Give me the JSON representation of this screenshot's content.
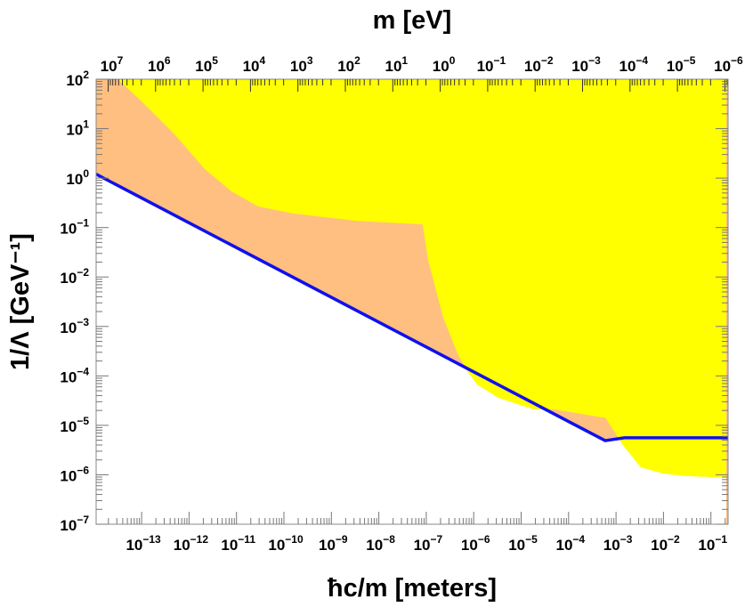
{
  "chart_data": {
    "type": "area",
    "title": "",
    "xlabel": "ħc/m [meters]",
    "ylabel": "1/Λ [GeV⁻¹]",
    "top_xlabel": "m [eV]",
    "xscale": "log",
    "yscale": "log",
    "xlim": [
      1.1e-14,
      0.23
    ],
    "ylim": [
      1e-07,
      100
    ],
    "grid": false,
    "legend": "none",
    "x_ticks": [
      {
        "base": "10",
        "exp": "−13",
        "value": 1e-13
      },
      {
        "base": "10",
        "exp": "−12",
        "value": 1e-12
      },
      {
        "base": "10",
        "exp": "−11",
        "value": 1e-11
      },
      {
        "base": "10",
        "exp": "−10",
        "value": 1e-10
      },
      {
        "base": "10",
        "exp": "−9",
        "value": 1e-09
      },
      {
        "base": "10",
        "exp": "−8",
        "value": 1e-08
      },
      {
        "base": "10",
        "exp": "−7",
        "value": 1e-07
      },
      {
        "base": "10",
        "exp": "−6",
        "value": 1e-06
      },
      {
        "base": "10",
        "exp": "−5",
        "value": 1e-05
      },
      {
        "base": "10",
        "exp": "−4",
        "value": 0.0001
      },
      {
        "base": "10",
        "exp": "−3",
        "value": 0.001
      },
      {
        "base": "10",
        "exp": "−2",
        "value": 0.01
      },
      {
        "base": "10",
        "exp": "−1",
        "value": 0.1
      }
    ],
    "top_ticks_ev": [
      {
        "base": "10",
        "exp": "7",
        "value": 10000000.0
      },
      {
        "base": "10",
        "exp": "6",
        "value": 1000000.0
      },
      {
        "base": "10",
        "exp": "5",
        "value": 100000.0
      },
      {
        "base": "10",
        "exp": "4",
        "value": 10000.0
      },
      {
        "base": "10",
        "exp": "3",
        "value": 1000.0
      },
      {
        "base": "10",
        "exp": "2",
        "value": 100.0
      },
      {
        "base": "10",
        "exp": "1",
        "value": 10.0
      },
      {
        "base": "10",
        "exp": "0",
        "value": 1
      },
      {
        "base": "10",
        "exp": "−1",
        "value": 0.1
      },
      {
        "base": "10",
        "exp": "−2",
        "value": 0.01
      },
      {
        "base": "10",
        "exp": "−3",
        "value": 0.001
      },
      {
        "base": "10",
        "exp": "−4",
        "value": 0.0001
      },
      {
        "base": "10",
        "exp": "−5",
        "value": 1e-05
      },
      {
        "base": "10",
        "exp": "−6",
        "value": 1e-06
      }
    ],
    "hbar_c_eV_m": 1.97e-07,
    "y_ticks": [
      {
        "base": "10",
        "exp": "2",
        "value": 100
      },
      {
        "base": "10",
        "exp": "1",
        "value": 10
      },
      {
        "base": "10",
        "exp": "0",
        "value": 1
      },
      {
        "base": "10",
        "exp": "−1",
        "value": 0.1
      },
      {
        "base": "10",
        "exp": "−2",
        "value": 0.01
      },
      {
        "base": "10",
        "exp": "−3",
        "value": 0.001
      },
      {
        "base": "10",
        "exp": "−4",
        "value": 0.0001
      },
      {
        "base": "10",
        "exp": "−5",
        "value": 1e-05
      },
      {
        "base": "10",
        "exp": "−6",
        "value": 1e-06
      },
      {
        "base": "10",
        "exp": "−7",
        "value": 1e-07
      }
    ],
    "series": [
      {
        "kind": "line",
        "color": "#1010ee",
        "points": [
          [
            1.1e-14,
            1.2
          ],
          [
            0.00059,
            4.9e-06
          ],
          [
            0.0015,
            5.6e-06
          ],
          [
            0.23,
            5.6e-06
          ]
        ]
      },
      {
        "kind": "filled-region-above-line",
        "color": "#ffbf80",
        "boundary": [
          [
            1.1e-14,
            1.2
          ],
          [
            0.00059,
            4.9e-06
          ],
          [
            0.0015,
            5.6e-06
          ]
        ]
      },
      {
        "kind": "filled-region-above-curve",
        "color": "#ffff00",
        "boundary": [
          [
            3.1e-14,
            100
          ],
          [
            8.4e-14,
            41.9
          ],
          [
            2.48e-13,
            14.9
          ],
          [
            5.16e-13,
            7.35
          ],
          [
            2.14e-12,
            1.52
          ],
          [
            7.83e-12,
            0.54
          ],
          [
            2.86e-11,
            0.267
          ],
          [
            1.61e-10,
            0.191
          ],
          [
            3.3e-09,
            0.137
          ],
          [
            8.4e-08,
            0.116
          ],
          [
            1.09e-07,
            0.0222
          ],
          [
            2.28e-07,
            0.0015
          ],
          [
            4.54e-07,
            0.000286
          ],
          [
            7.3e-07,
            0.000125
          ],
          [
            1.17e-06,
            6.7e-05
          ],
          [
            3.3e-06,
            3.6e-05
          ],
          [
            1.86e-05,
            2.1e-05
          ],
          [
            5e-05,
            2.1e-05
          ],
          [
            0.000494,
            1.45e-05
          ],
          [
            0.00059,
            1.45e-05
          ],
          [
            0.00139,
            4e-06
          ],
          [
            0.0033,
            1.42e-06
          ],
          [
            0.0097,
            1.06e-06
          ],
          [
            0.0286,
            9.4e-07
          ],
          [
            0.104,
            9e-07
          ],
          [
            0.22,
            9e-07
          ]
        ]
      }
    ]
  }
}
